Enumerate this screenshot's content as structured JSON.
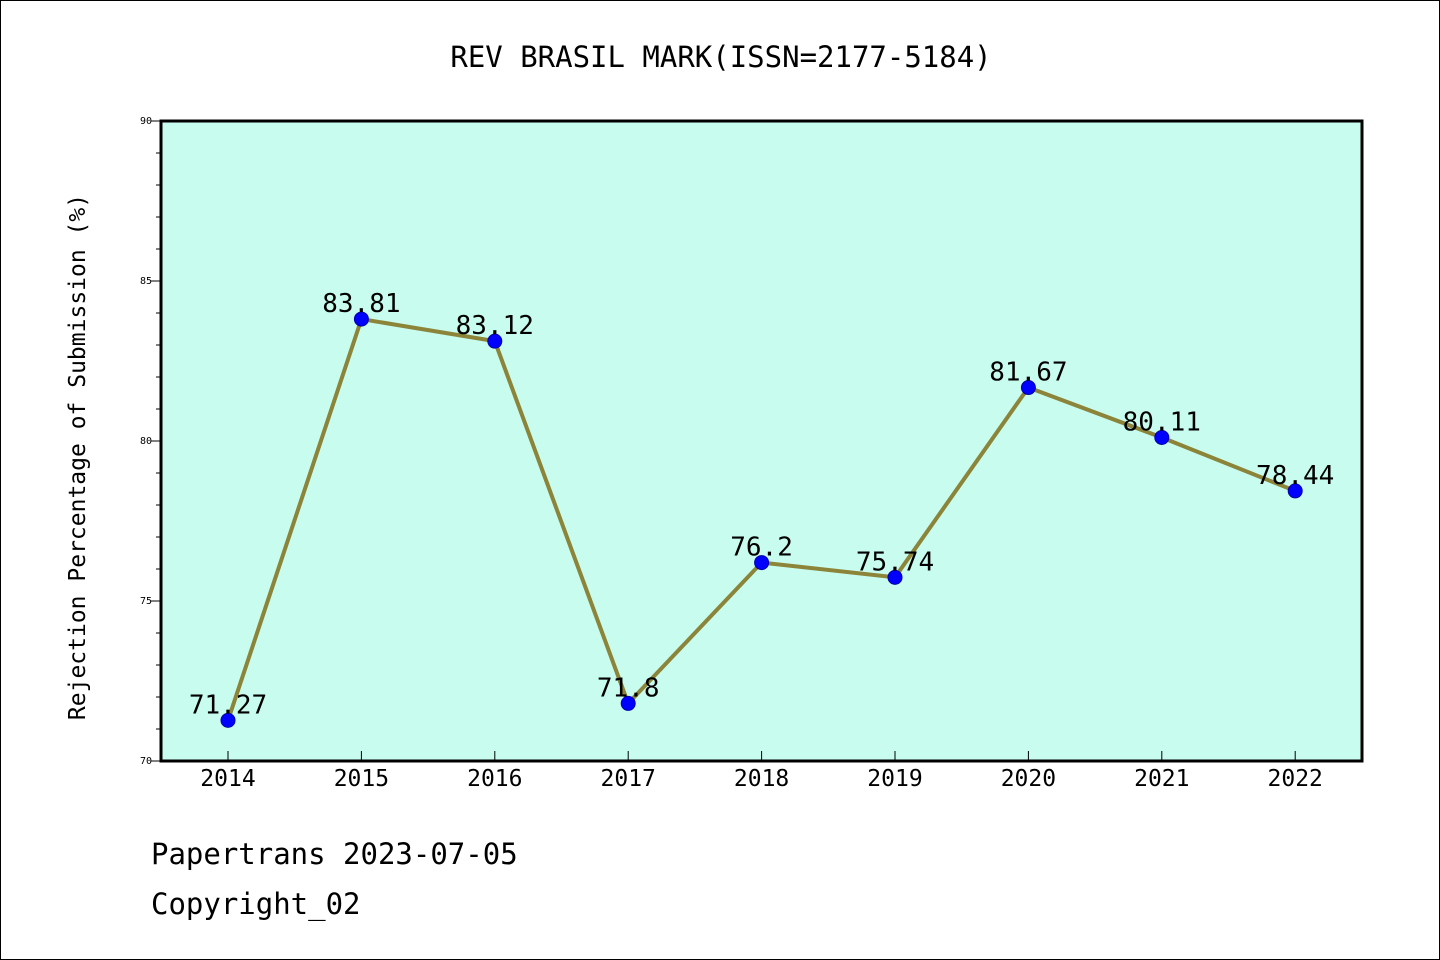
{
  "chart_data": {
    "type": "line",
    "title": "REV BRASIL MARK(ISSN=2177-5184)",
    "xlabel": "",
    "ylabel": "Rejection Percentage of Submission (%)",
    "categories": [
      "2014",
      "2015",
      "2016",
      "2017",
      "2018",
      "2019",
      "2020",
      "2021",
      "2022"
    ],
    "series": [
      {
        "values": [
          71.27,
          83.81,
          83.12,
          71.8,
          76.2,
          75.74,
          81.67,
          80.11,
          78.44
        ],
        "labels": [
          "71.27",
          "83.81",
          "83.12",
          "71.8",
          "76.2",
          "75.74",
          "81.67",
          "80.11",
          "78.44"
        ]
      }
    ],
    "ylim": [
      70,
      90
    ],
    "yticks": [
      70,
      75,
      80,
      85,
      90
    ],
    "grid": false,
    "legend": "none",
    "colors": {
      "plot_background": "#c8fcee",
      "line": "#8b8439",
      "marker": "#0000ff"
    }
  },
  "footer": {
    "date_line": "Papertrans 2023-07-05",
    "copyright": "Copyright_02"
  }
}
